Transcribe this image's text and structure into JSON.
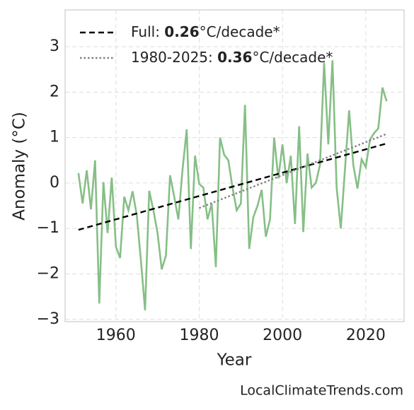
{
  "chart_data": {
    "type": "line",
    "xlabel": "Year",
    "ylabel": "Anomaly (°C)",
    "source": "LocalClimateTrends.com",
    "grid": true,
    "xlim": [
      1947.8,
      2029.2
    ],
    "ylim": [
      -3.05,
      3.81
    ],
    "xticks": [
      1960,
      1980,
      2000,
      2020
    ],
    "yticks": [
      {
        "value": -3,
        "label": "−3"
      },
      {
        "value": -2,
        "label": "−2"
      },
      {
        "value": -1,
        "label": "−1"
      },
      0,
      1,
      2,
      3
    ],
    "x": [
      1951,
      1952,
      1953,
      1954,
      1955,
      1956,
      1957,
      1958,
      1959,
      1960,
      1961,
      1962,
      1963,
      1964,
      1965,
      1966,
      1967,
      1968,
      1969,
      1970,
      1971,
      1972,
      1973,
      1974,
      1975,
      1976,
      1977,
      1978,
      1979,
      1980,
      1981,
      1982,
      1983,
      1984,
      1985,
      1986,
      1987,
      1988,
      1989,
      1990,
      1991,
      1992,
      1993,
      1994,
      1995,
      1996,
      1997,
      1998,
      1999,
      2000,
      2001,
      2002,
      2003,
      2004,
      2005,
      2006,
      2007,
      2008,
      2009,
      2010,
      2011,
      2012,
      2013,
      2014,
      2015,
      2016,
      2017,
      2018,
      2019,
      2020,
      2021,
      2022,
      2023,
      2024,
      2025
    ],
    "series": [
      {
        "color": "#86bf86",
        "values": [
          0.22,
          -0.45,
          0.28,
          -0.58,
          0.5,
          -2.65,
          0.02,
          -1.1,
          0.12,
          -1.4,
          -1.65,
          -0.3,
          -0.6,
          -0.18,
          -0.7,
          -1.7,
          -2.8,
          -0.17,
          -0.6,
          -1.1,
          -1.9,
          -1.6,
          0.17,
          -0.3,
          -0.8,
          0.3,
          1.18,
          -1.45,
          0.6,
          -0.02,
          -0.1,
          -0.8,
          -0.45,
          -1.85,
          1.0,
          0.62,
          0.5,
          -0.1,
          -0.6,
          -0.45,
          1.72,
          -1.45,
          -0.75,
          -0.5,
          -0.15,
          -1.18,
          -0.8,
          1.0,
          0.1,
          0.85,
          0.0,
          0.6,
          -0.9,
          1.25,
          -1.08,
          0.65,
          -0.1,
          0.0,
          0.4,
          2.65,
          0.85,
          2.7,
          -0.1,
          -1.0,
          0.3,
          1.6,
          0.4,
          -0.12,
          0.52,
          0.35,
          0.95,
          1.1,
          1.2,
          2.1,
          1.8
        ]
      }
    ],
    "trends": [
      {
        "label": "Full: ",
        "rate": 0.26,
        "unit": "°C/decade*",
        "color": "#000000",
        "linestyle": "dashed",
        "x": [
          1951,
          2025
        ],
        "values": [
          -1.03,
          0.87
        ]
      },
      {
        "label": "1980-2025: ",
        "rate": 0.36,
        "unit": "°C/decade*",
        "color": "#808080",
        "linestyle": "dotted",
        "x": [
          1980,
          2025
        ],
        "values": [
          -0.55,
          1.08
        ]
      }
    ]
  }
}
